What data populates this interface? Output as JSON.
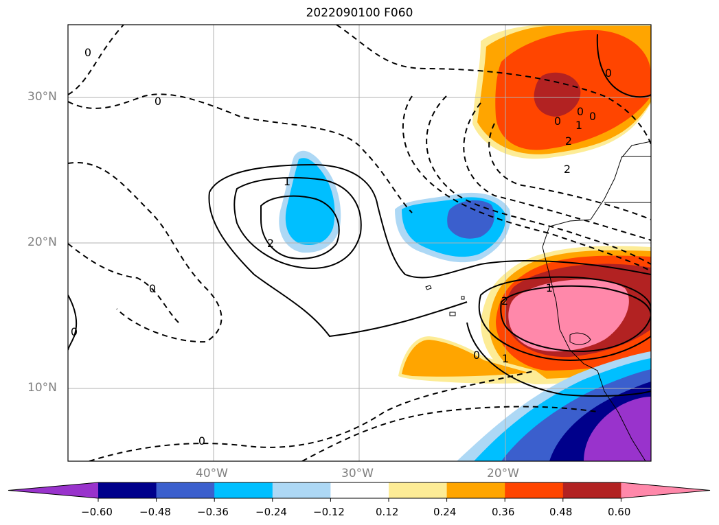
{
  "title": "2022090100 F060",
  "map": {
    "lat_labels": [
      "30°N",
      "20°N",
      "10°N"
    ],
    "lon_labels": [
      "40°W",
      "30°W",
      "20°W"
    ],
    "contour_labels": [
      "0",
      "0",
      "0",
      "0",
      "0",
      "0",
      "0",
      "1",
      "2",
      "1",
      "2",
      "2",
      "1",
      "2",
      "0",
      "1",
      "0",
      "0"
    ],
    "gridline_color": "#b0b0b0"
  },
  "colorbar": {
    "ticks": [
      "−0.60",
      "−0.48",
      "−0.36",
      "−0.24",
      "−0.12",
      "0.12",
      "0.24",
      "0.36",
      "0.48",
      "0.60"
    ],
    "colors": [
      "#9933cc",
      "#00008b",
      "#3b5fcd",
      "#00bfff",
      "#add8f5",
      "#ffffff",
      "#fdec96",
      "#ffa500",
      "#ff4500",
      "#b22222",
      "#ff88aa"
    ]
  }
}
